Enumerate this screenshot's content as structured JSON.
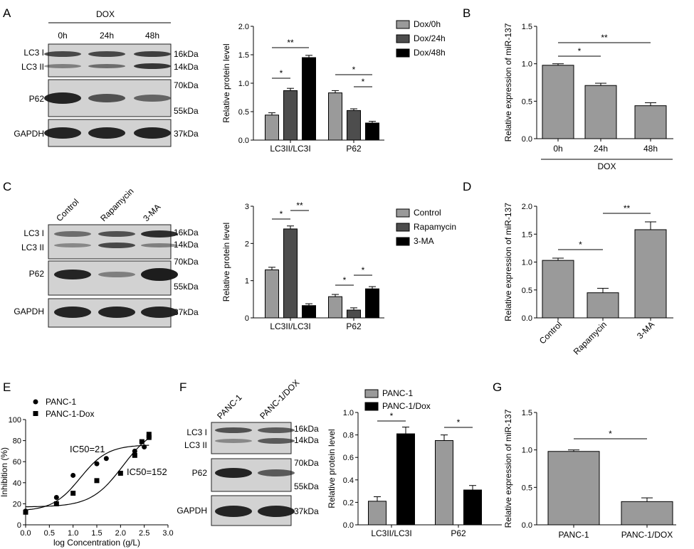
{
  "figure": {
    "panel_letters": [
      "A",
      "B",
      "C",
      "D",
      "E",
      "F",
      "G"
    ],
    "colors": {
      "gray": "#9a9a9a",
      "dark": "#4d4d4d",
      "black": "#000000",
      "blot_bg": "#d2d2d2",
      "band": "#1a1a1a"
    },
    "A": {
      "blot": {
        "treatment": "DOX",
        "lanes": [
          "0h",
          "24h",
          "48h"
        ],
        "rows": [
          {
            "name": "LC3 I\nLC3 II",
            "markers": [
              "16kDa",
              "14kDa"
            ]
          },
          {
            "name": "P62",
            "markers": [
              "70kDa",
              "55kDa"
            ]
          },
          {
            "name": "GAPDH",
            "markers": [
              "37kDa"
            ]
          }
        ]
      }
    },
    "C": {
      "blot": {
        "lanes": [
          "Control",
          "Rapamycin",
          "3-MA"
        ],
        "rows": [
          {
            "name": "LC3 I\nLC3 II",
            "markers": [
              "16kDa",
              "14kDa"
            ]
          },
          {
            "name": "P62",
            "markers": [
              "70kDa",
              "55kDa"
            ]
          },
          {
            "name": "GAPDH",
            "markers": [
              "37kDa"
            ]
          }
        ]
      }
    },
    "F": {
      "blot": {
        "lanes": [
          "PANC-1",
          "PANC-1/DOX"
        ],
        "rows": [
          {
            "name": "LC3 I\nLC3 II",
            "markers": [
              "16kDa",
              "14kDa"
            ]
          },
          {
            "name": "P62",
            "markers": [
              "70kDa",
              "55kDa"
            ]
          },
          {
            "name": "GAPDH",
            "markers": [
              "37kDa"
            ]
          }
        ]
      }
    }
  },
  "chart_data": [
    {
      "panel": "A",
      "type": "bar",
      "categories": [
        "LC3II/LC3I",
        "P62"
      ],
      "series": [
        {
          "name": "Dox/0h",
          "color": "#9a9a9a",
          "values": [
            0.44,
            0.83
          ]
        },
        {
          "name": "Dox/24h",
          "color": "#4d4d4d",
          "values": [
            0.87,
            0.52
          ]
        },
        {
          "name": "Dox/48h",
          "color": "#000000",
          "values": [
            1.45,
            0.3
          ]
        }
      ],
      "errors": [
        [
          0.04,
          0.04
        ],
        [
          0.04,
          0.03
        ],
        [
          0.04,
          0.03
        ]
      ],
      "ylabel": "Relative protein level",
      "ylim": [
        0,
        2.0
      ],
      "yticks": [
        "0.0",
        "0.5",
        "1.0",
        "1.5",
        "2.0"
      ],
      "significance": [
        "*",
        "**",
        "*",
        "*"
      ]
    },
    {
      "panel": "B",
      "type": "bar",
      "categories": [
        "0h",
        "24h",
        "48h"
      ],
      "values": [
        0.98,
        0.71,
        0.44
      ],
      "errors": [
        0.02,
        0.03,
        0.04
      ],
      "ylabel": "Relative expression of miR-137",
      "xlabel": "DOX",
      "ylim": [
        0,
        1.5
      ],
      "yticks": [
        "0.0",
        "0.5",
        "1.0",
        "1.5"
      ],
      "significance": [
        "*",
        "**"
      ]
    },
    {
      "panel": "C",
      "type": "bar",
      "categories": [
        "LC3II/LC3I",
        "P62"
      ],
      "series": [
        {
          "name": "Control",
          "color": "#9a9a9a",
          "values": [
            1.29,
            0.57
          ]
        },
        {
          "name": "Rapamycin",
          "color": "#4d4d4d",
          "values": [
            2.39,
            0.21
          ]
        },
        {
          "name": "3-MA",
          "color": "#000000",
          "values": [
            0.33,
            0.78
          ]
        }
      ],
      "errors": [
        [
          0.07,
          0.06
        ],
        [
          0.08,
          0.06
        ],
        [
          0.05,
          0.06
        ]
      ],
      "ylabel": "Relative protein level",
      "ylim": [
        0,
        3
      ],
      "yticks": [
        "0",
        "1",
        "2",
        "3"
      ],
      "significance": [
        "*",
        "**",
        "*",
        "*"
      ]
    },
    {
      "panel": "D",
      "type": "bar",
      "categories": [
        "Control",
        "Rapamycin",
        "3-MA"
      ],
      "values": [
        1.03,
        0.45,
        1.58
      ],
      "errors": [
        0.04,
        0.08,
        0.14
      ],
      "ylabel": "Relative expression of miR-137",
      "ylim": [
        0,
        2.0
      ],
      "yticks": [
        "0.0",
        "0.5",
        "1.0",
        "1.5",
        "2.0"
      ],
      "significance": [
        "*",
        "**"
      ]
    },
    {
      "panel": "E",
      "type": "scatter",
      "series": [
        {
          "name": "PANC-1",
          "marker": "circle",
          "x": [
            0.0,
            0.65,
            1.0,
            1.5,
            1.7,
            2.3,
            2.5,
            2.6
          ],
          "y": [
            13,
            26,
            47,
            58,
            63,
            70,
            74,
            83
          ]
        },
        {
          "name": "PANC-1-Dox",
          "marker": "square",
          "x": [
            0.0,
            0.65,
            1.0,
            1.5,
            2.0,
            2.3,
            2.45,
            2.6,
            2.6
          ],
          "y": [
            12,
            20,
            30,
            42,
            49,
            66,
            79,
            83,
            86
          ]
        }
      ],
      "annotations": [
        "IC50=21",
        "IC50=152"
      ],
      "xlabel": "log Concentration (g/L)",
      "ylabel": "Inhibition (%)",
      "xlim": [
        0,
        3.0
      ],
      "ylim": [
        0,
        100
      ],
      "xticks": [
        "0.0",
        "0.5",
        "1.0",
        "1.5",
        "2.0",
        "2.5",
        "3.0"
      ],
      "yticks": [
        "0",
        "20",
        "40",
        "60",
        "80",
        "100"
      ]
    },
    {
      "panel": "F",
      "type": "bar",
      "categories": [
        "LC3II/LC3I",
        "P62"
      ],
      "series": [
        {
          "name": "PANC-1",
          "color": "#9a9a9a",
          "values": [
            0.21,
            0.75
          ]
        },
        {
          "name": "PANC-1/Dox",
          "color": "#000000",
          "values": [
            0.81,
            0.31
          ]
        }
      ],
      "errors": [
        [
          0.04,
          0.05
        ],
        [
          0.06,
          0.04
        ]
      ],
      "ylabel": "Relative protein level",
      "ylim": [
        0,
        1.0
      ],
      "yticks": [
        "0.0",
        "0.2",
        "0.4",
        "0.6",
        "0.8",
        "1.0"
      ],
      "significance": [
        "*",
        "*"
      ]
    },
    {
      "panel": "G",
      "type": "bar",
      "categories": [
        "PANC-1",
        "PANC-1/DOX"
      ],
      "values": [
        0.98,
        0.31
      ],
      "errors": [
        0.02,
        0.05
      ],
      "ylabel": "Relative expression of miR-137",
      "ylim": [
        0,
        1.5
      ],
      "yticks": [
        "0.0",
        "0.5",
        "1.0",
        "1.5"
      ],
      "significance": [
        "*"
      ]
    }
  ]
}
